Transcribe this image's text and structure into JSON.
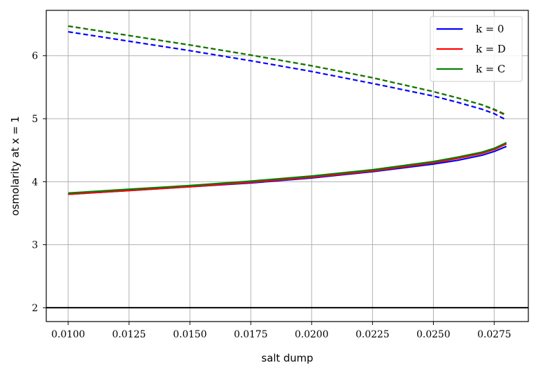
{
  "chart_data": {
    "type": "line",
    "title": "",
    "xlabel": "salt dump",
    "ylabel": "osmolarity at x = 1",
    "xlim": [
      0.0091,
      0.0289
    ],
    "ylim": [
      1.78,
      6.72
    ],
    "grid": true,
    "legend_position": "top-right",
    "x_ticks": [
      0.01,
      0.0125,
      0.015,
      0.0175,
      0.02,
      0.0225,
      0.025,
      0.0275
    ],
    "x_tick_labels": [
      "0.0100",
      "0.0125",
      "0.0150",
      "0.0175",
      "0.0200",
      "0.0225",
      "0.0250",
      "0.0275"
    ],
    "y_ticks": [
      2,
      3,
      4,
      5,
      6
    ],
    "y_tick_labels": [
      "2",
      "3",
      "4",
      "5",
      "6"
    ],
    "hline": {
      "y": 2,
      "color": "#000000"
    },
    "legend": [
      {
        "label": "k = 0",
        "color": "#0000ff"
      },
      {
        "label": "k = D",
        "color": "#ff0000"
      },
      {
        "label": "k = C",
        "color": "#008000"
      }
    ],
    "x": [
      0.01,
      0.0125,
      0.015,
      0.0175,
      0.02,
      0.0225,
      0.025,
      0.026,
      0.027,
      0.0275,
      0.028
    ],
    "series": [
      {
        "name": "k = 0",
        "style": "dashed",
        "color": "#0000ff",
        "values": [
          6.38,
          6.23,
          6.08,
          5.92,
          5.75,
          5.56,
          5.36,
          5.26,
          5.15,
          5.08,
          4.98
        ]
      },
      {
        "name": "k = 0",
        "style": "solid",
        "color": "#0000ff",
        "values": [
          3.8,
          3.86,
          3.92,
          3.98,
          4.06,
          4.16,
          4.28,
          4.34,
          4.42,
          4.48,
          4.56
        ]
      },
      {
        "name": "k = D",
        "style": "dashed",
        "color": "#ff0000",
        "values": [
          6.47,
          6.32,
          6.17,
          6.01,
          5.84,
          5.65,
          5.43,
          5.33,
          5.22,
          5.14,
          5.05
        ]
      },
      {
        "name": "k = D",
        "style": "solid",
        "color": "#ff0000",
        "values": [
          3.8,
          3.86,
          3.92,
          3.99,
          4.07,
          4.17,
          4.3,
          4.37,
          4.45,
          4.51,
          4.6
        ]
      },
      {
        "name": "k = C",
        "style": "dashed",
        "color": "#008000",
        "values": [
          6.47,
          6.32,
          6.17,
          6.01,
          5.84,
          5.65,
          5.43,
          5.33,
          5.22,
          5.15,
          5.06
        ]
      },
      {
        "name": "k = C",
        "style": "solid",
        "color": "#008000",
        "values": [
          3.82,
          3.88,
          3.94,
          4.01,
          4.09,
          4.19,
          4.32,
          4.39,
          4.47,
          4.53,
          4.62
        ]
      }
    ]
  }
}
